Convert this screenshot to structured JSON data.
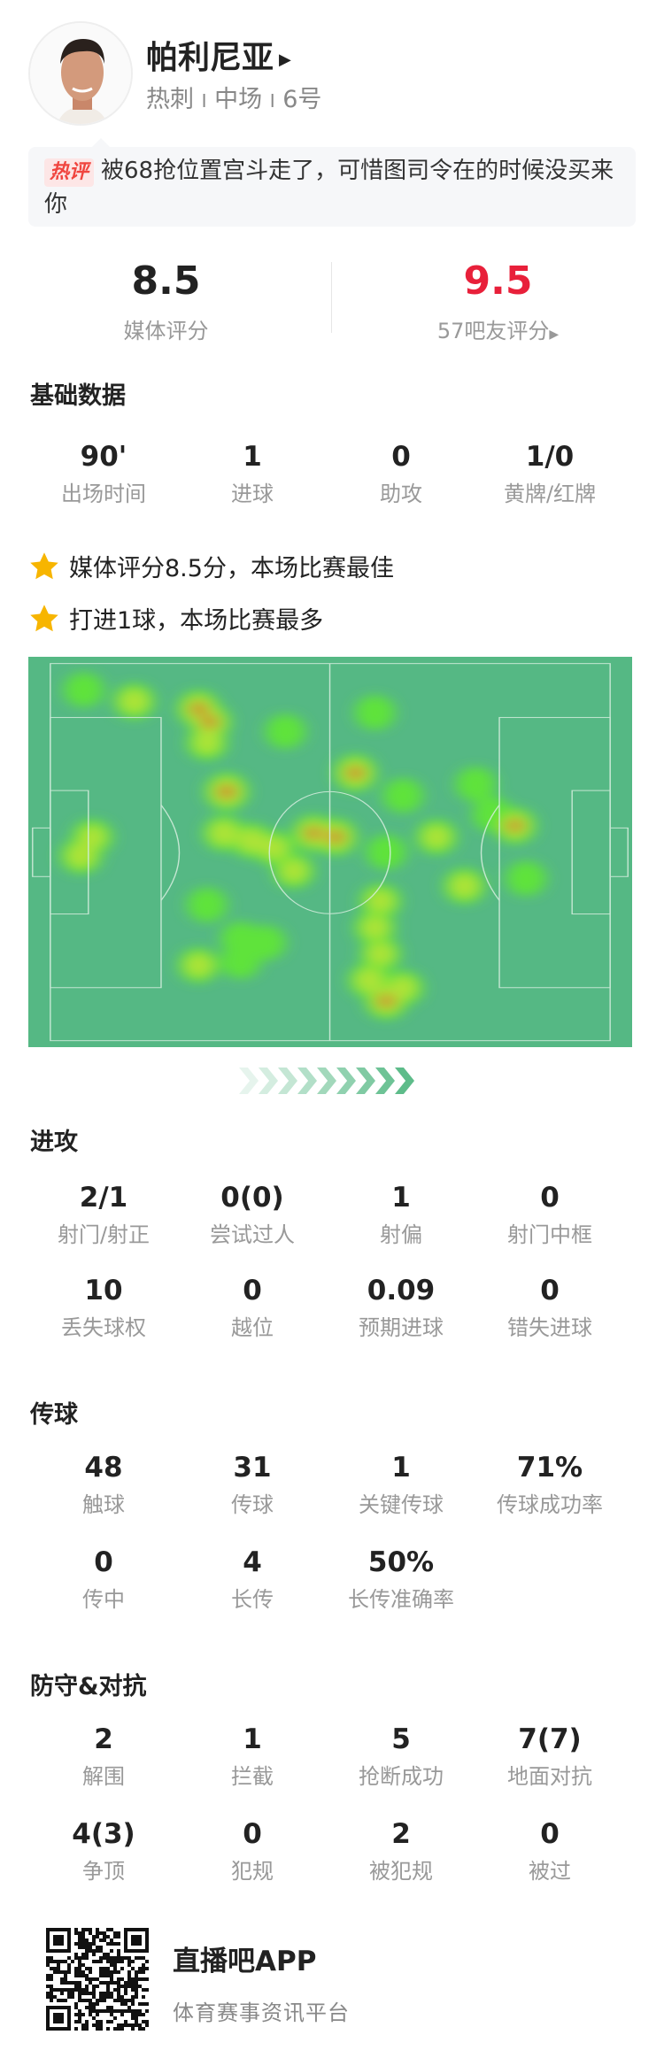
{
  "player": {
    "name": "帕利尼亚",
    "team": "热刺",
    "position": "中场",
    "number": "6号",
    "sep": "I",
    "arrow": "▶"
  },
  "comment": {
    "tag": "热评",
    "text": "被68抢位置宫斗走了，可惜图司令在的时候没买来你"
  },
  "ratings": {
    "media": {
      "value": "8.5",
      "label": "媒体评分"
    },
    "fans": {
      "value": "9.5",
      "label": "57吧友评分",
      "arrow": "▶",
      "color": "#e8203a"
    }
  },
  "basic": {
    "title": "基础数据",
    "stats": [
      {
        "value": "90'",
        "label": "出场时间"
      },
      {
        "value": "1",
        "label": "进球"
      },
      {
        "value": "0",
        "label": "助攻"
      },
      {
        "value": "1/0",
        "label": "黄牌/红牌"
      }
    ]
  },
  "highlights": [
    {
      "icon": "star-icon",
      "text": "媒体评分8.5分，本场比赛最佳"
    },
    {
      "icon": "star-icon",
      "text": "打进1球，本场比赛最多"
    }
  ],
  "heatmap": {
    "pitch_color": "#55b884",
    "direction": "left-to-right",
    "points": [
      {
        "x": 6,
        "y": 7,
        "i": 0.5
      },
      {
        "x": 15,
        "y": 10,
        "i": 0.7
      },
      {
        "x": 26.5,
        "y": 12,
        "i": 0.9
      },
      {
        "x": 28.5,
        "y": 15.5,
        "i": 0.85
      },
      {
        "x": 28,
        "y": 21,
        "i": 0.6
      },
      {
        "x": 42,
        "y": 18,
        "i": 0.5
      },
      {
        "x": 31.5,
        "y": 34,
        "i": 1.0
      },
      {
        "x": 31,
        "y": 45,
        "i": 0.7
      },
      {
        "x": 36,
        "y": 47,
        "i": 0.65
      },
      {
        "x": 40,
        "y": 49,
        "i": 0.6
      },
      {
        "x": 43.5,
        "y": 55,
        "i": 0.6
      },
      {
        "x": 47,
        "y": 45,
        "i": 0.85
      },
      {
        "x": 51,
        "y": 46,
        "i": 0.9
      },
      {
        "x": 58,
        "y": 13,
        "i": 0.5
      },
      {
        "x": 54.5,
        "y": 29,
        "i": 0.9
      },
      {
        "x": 63,
        "y": 35,
        "i": 0.5
      },
      {
        "x": 76,
        "y": 32,
        "i": 0.5
      },
      {
        "x": 79,
        "y": 40,
        "i": 0.55
      },
      {
        "x": 83,
        "y": 43,
        "i": 0.8
      },
      {
        "x": 69,
        "y": 46,
        "i": 0.6
      },
      {
        "x": 74,
        "y": 59,
        "i": 0.7
      },
      {
        "x": 85,
        "y": 57,
        "i": 0.5
      },
      {
        "x": 5.5,
        "y": 51,
        "i": 0.7
      },
      {
        "x": 7.5,
        "y": 46,
        "i": 0.6
      },
      {
        "x": 28,
        "y": 64,
        "i": 0.5
      },
      {
        "x": 34,
        "y": 73,
        "i": 0.5
      },
      {
        "x": 38.5,
        "y": 74,
        "i": 0.5
      },
      {
        "x": 34,
        "y": 79,
        "i": 0.5
      },
      {
        "x": 26.5,
        "y": 80,
        "i": 0.6
      },
      {
        "x": 60,
        "y": 50,
        "i": 0.5
      },
      {
        "x": 59,
        "y": 63,
        "i": 0.6
      },
      {
        "x": 58,
        "y": 70,
        "i": 0.6
      },
      {
        "x": 59,
        "y": 77,
        "i": 0.6
      },
      {
        "x": 57,
        "y": 84,
        "i": 0.7
      },
      {
        "x": 60,
        "y": 89.5,
        "i": 0.85
      },
      {
        "x": 63,
        "y": 86,
        "i": 0.6
      }
    ]
  },
  "attack": {
    "title": "进攻",
    "stats": [
      {
        "value": "2/1",
        "label": "射门/射正"
      },
      {
        "value": "0(0)",
        "label": "尝试过人"
      },
      {
        "value": "1",
        "label": "射偏"
      },
      {
        "value": "0",
        "label": "射门中框"
      },
      {
        "value": "10",
        "label": "丢失球权"
      },
      {
        "value": "0",
        "label": "越位"
      },
      {
        "value": "0.09",
        "label": "预期进球"
      },
      {
        "value": "0",
        "label": "错失进球"
      }
    ]
  },
  "passing": {
    "title": "传球",
    "stats": [
      {
        "value": "48",
        "label": "触球"
      },
      {
        "value": "31",
        "label": "传球"
      },
      {
        "value": "1",
        "label": "关键传球"
      },
      {
        "value": "71%",
        "label": "传球成功率"
      },
      {
        "value": "0",
        "label": "传中"
      },
      {
        "value": "4",
        "label": "长传"
      },
      {
        "value": "50%",
        "label": "长传准确率"
      }
    ]
  },
  "defense": {
    "title": "防守&对抗",
    "stats": [
      {
        "value": "2",
        "label": "解围"
      },
      {
        "value": "1",
        "label": "拦截"
      },
      {
        "value": "5",
        "label": "抢断成功"
      },
      {
        "value": "7(7)",
        "label": "地面对抗"
      },
      {
        "value": "4(3)",
        "label": "争顶"
      },
      {
        "value": "0",
        "label": "犯规"
      },
      {
        "value": "2",
        "label": "被犯规"
      },
      {
        "value": "0",
        "label": "被过"
      }
    ]
  },
  "footer": {
    "app": "直播吧APP",
    "slogan": "体育赛事资讯平台"
  }
}
